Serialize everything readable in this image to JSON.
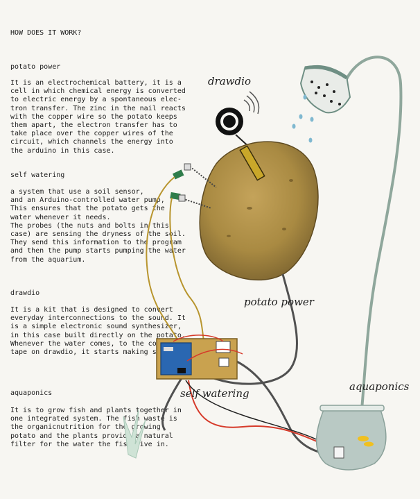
{
  "header": {
    "title": "HOW DOES IT WORK?"
  },
  "sections": [
    {
      "title": "potato power",
      "body": "It is an electrochemical battery, it is a\ncell in which chemical energy is converted\nto electric energy by a spontaneous elec-\ntron transfer. The zinc in the nail reacts\nwith the copper wire so the potato keeps\nthem apart, the electron transfer has to\ntake place over the copper wires of the\ncircuit, which channels the energy into\nthe arduino in this case."
    },
    {
      "title": "self watering",
      "body": "a system that use a soil sensor,\nand an Arduino-controlled water pump,\nThis ensures that the potato gets the\nwater whenever it needs.\nThe probes (the nuts and bolts in this\ncase) are sensing the dryness of the soil.\nThey send this information to the program\nand then the pump starts pumping the water\nfrom the aquarium."
    },
    {
      "title": "drawdio",
      "body": "It is a kit that is designed to convert\neveryday interconnections to the sound. It\nis a simple electronic sound synthesizer,\nin this case built directly on the potato.\nWhenever the water comes, to the copper\ntape on drawdio, it starts making sound."
    },
    {
      "title": "aquaponics",
      "body": "It is to grow fish and plants together in\none integrated system. The fish waste is\nthe organicnutrition for the growing\npotato and the plants provide a natural\nfilter for the water the fish live in."
    }
  ],
  "labels": {
    "drawdio": "drawdio",
    "potato_power": "potato power",
    "self_watering": "self watering",
    "aquaponics": "aquaponics"
  },
  "colors": {
    "potato": "#a98a42",
    "wire_yellow": "#b8952e",
    "wire_grey": "#505050",
    "wire_red": "#d63a2a",
    "lamp_green": "#8fa79c",
    "water": "#b9c9c4",
    "arduino_blue": "#2a67b1",
    "board": "#c9a24f",
    "fish": "#f0c020"
  }
}
